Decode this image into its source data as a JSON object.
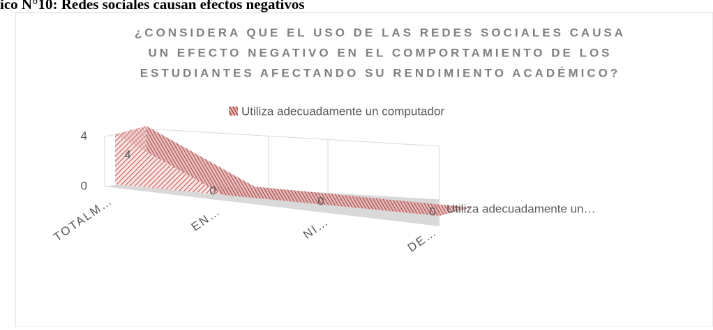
{
  "caption": "ico N°10: Redes sociales causan efectos negativos",
  "chart_data": {
    "type": "area3d",
    "title": [
      "¿CONSIDERA QUE EL USO DE LAS REDES SOCIALES CAUSA",
      "UN EFECTO NEGATIVO EN EL COMPORTAMIENTO DE LOS",
      "ESTUDIANTES AFECTANDO SU RENDIMIENTO ACADÉMICO?"
    ],
    "categories": [
      "TOTALM…",
      "EN…",
      "NI…",
      "DE…"
    ],
    "series": [
      {
        "name": "Utiliza adecuadamente un computador",
        "color": "#d9797a",
        "values": [
          4,
          0,
          0,
          0
        ]
      }
    ],
    "depth_label": "Utiliza adecuadamente un…",
    "ylim": [
      0,
      4
    ],
    "yticks": [
      0,
      4
    ],
    "grid": true,
    "legend": "top"
  }
}
